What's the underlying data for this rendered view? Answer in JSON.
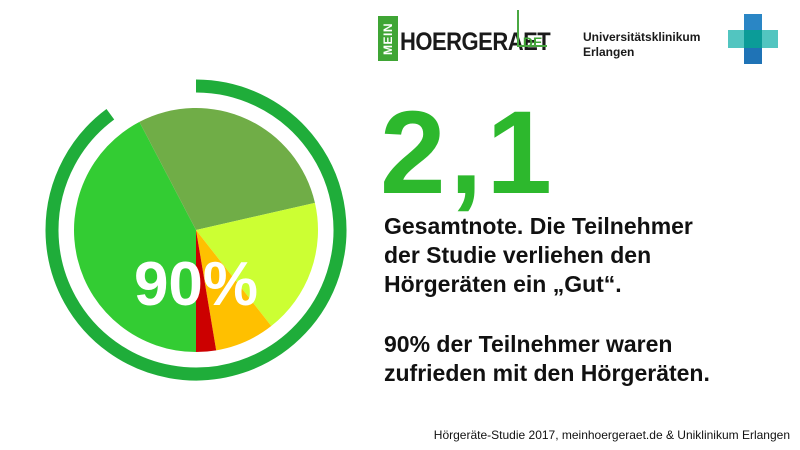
{
  "header": {
    "logo_mein_prefix": "MEIN",
    "logo_mein_word": "HOERGERAET",
    "logo_mein_tld": ".DE",
    "logo_uke_line1": "Universitätsklinikum",
    "logo_uke_line2": "Erlangen"
  },
  "colors": {
    "accent_green": "#2db82d",
    "ring_green": "#1fad3a",
    "logo_green": "#3fa535",
    "uke_teal": "#0b9c98",
    "uke_light": "#52c5c0",
    "uke_blue": "#1f73b6"
  },
  "chart_data": {
    "type": "pie",
    "center_label": "90%",
    "ring_value_percent": 90,
    "categories": [
      "",
      "",
      "",
      "",
      ""
    ],
    "values": [
      40,
      27.5,
      17,
      7.5,
      2.5
    ],
    "colors": [
      "#33cc33",
      "#70ad47",
      "#ccff33",
      "#ffc000",
      "#cc0000"
    ]
  },
  "main": {
    "grade": "2,1",
    "desc_line1": "Gesamtnote. Die Teilnehmer",
    "desc_line2": "der Studie verliehen den",
    "desc_line3": "Hörgeräten ein „Gut“.",
    "desc2_line1": "90% der Teilnehmer waren",
    "desc2_line2": "zufrieden mit den Hörgeräten."
  },
  "footer": {
    "source": "Hörgeräte-Studie 2017, meinhoergeraet.de & Uniklinikum Erlangen"
  }
}
